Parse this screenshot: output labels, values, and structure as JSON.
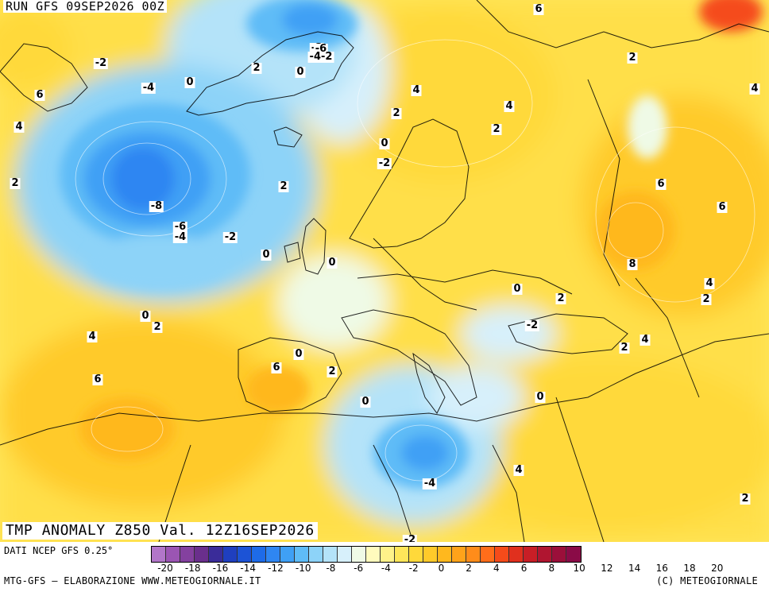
{
  "header": {
    "run_label": "RUN GFS 09SEP2026 00Z"
  },
  "map": {
    "title": "TMP ANOMALY Z850 Val. 12Z16SEP2026",
    "iso_labels": [
      "-2",
      "6",
      "6",
      "2",
      "4",
      "-2",
      "-4",
      "0",
      "2",
      "0",
      "-6",
      "-4-2",
      "4",
      "4",
      "2",
      "2",
      "2",
      "0",
      "-2",
      "2",
      "-8",
      "-6",
      "-4",
      "-2",
      "0",
      "0",
      "4",
      "6",
      "6",
      "8",
      "0",
      "2",
      "4",
      "2",
      "0",
      "-2",
      "2",
      "4",
      "4",
      "6",
      "2",
      "6",
      "0",
      "0",
      "0",
      "-4",
      "4",
      "2",
      "-2",
      "2"
    ]
  },
  "legend": {
    "source": "DATI NCEP GFS 0.25°",
    "colors": [
      "#b276c9",
      "#9b55b3",
      "#84419f",
      "#6a2f8c",
      "#3a2c99",
      "#1f3fbf",
      "#1c53d6",
      "#1e6be8",
      "#2f86f2",
      "#3fa0f5",
      "#5fbcf7",
      "#8dd3f8",
      "#b4e3f9",
      "#d7f0fb",
      "#effae6",
      "#fffbbd",
      "#fff28a",
      "#ffe65a",
      "#ffd93a",
      "#ffca2a",
      "#ffb81e",
      "#ffa31a",
      "#ff8c1a",
      "#ff6d1a",
      "#f54b1a",
      "#e0301e",
      "#c81e26",
      "#b01530",
      "#9b0f3a",
      "#8a0b47"
    ],
    "ticks": [
      "-20",
      "-18",
      "-16",
      "-14",
      "-12",
      "-10",
      "-8",
      "-6",
      "-4",
      "-2",
      "0",
      "2",
      "4",
      "6",
      "8",
      "10",
      "12",
      "14",
      "16",
      "18",
      "20"
    ]
  },
  "footer": {
    "left": "MTG-GFS — ELABORAZIONE WWW.METEOGIORNALE.IT",
    "right": "(C) METEOGIORNALE"
  }
}
